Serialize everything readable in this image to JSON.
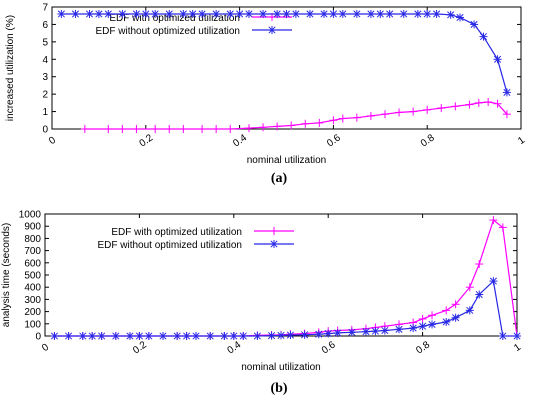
{
  "captions": [
    "(a)",
    "(b)"
  ],
  "colors": {
    "with": "#ff00ff",
    "without": "#2828e6",
    "axis": "#000000"
  },
  "chart_data": [
    {
      "type": "line",
      "xlabel": "nominal utilization",
      "ylabel": "increased utilization (%)",
      "xlim": [
        0,
        1
      ],
      "ylim": [
        0,
        7
      ],
      "xticks": [
        "0",
        "0.2",
        "0.4",
        "0.6",
        "0.8",
        "1"
      ],
      "yticks": [
        "0",
        "1",
        "2",
        "3",
        "4",
        "5",
        "6",
        "7"
      ],
      "legend_position": "top-right",
      "grid": false,
      "series": [
        {
          "name": "EDF with optimized utilization",
          "marker": "plus",
          "x": [
            0.07,
            0.12,
            0.15,
            0.18,
            0.22,
            0.25,
            0.28,
            0.32,
            0.35,
            0.38,
            0.42,
            0.45,
            0.48,
            0.51,
            0.54,
            0.57,
            0.6,
            0.62,
            0.65,
            0.68,
            0.71,
            0.74,
            0.77,
            0.8,
            0.83,
            0.86,
            0.89,
            0.91,
            0.93,
            0.95,
            0.97
          ],
          "y": [
            0,
            0,
            0,
            0,
            0,
            0,
            0,
            0,
            0,
            0,
            0.05,
            0.1,
            0.15,
            0.2,
            0.3,
            0.35,
            0.5,
            0.6,
            0.65,
            0.75,
            0.85,
            0.95,
            1.0,
            1.1,
            1.2,
            1.3,
            1.4,
            1.5,
            1.55,
            1.45,
            0.85
          ]
        },
        {
          "name": "EDF without optimized utilization",
          "marker": "star",
          "x": [
            0.02,
            0.05,
            0.08,
            0.1,
            0.12,
            0.15,
            0.18,
            0.2,
            0.22,
            0.25,
            0.28,
            0.3,
            0.32,
            0.35,
            0.38,
            0.4,
            0.42,
            0.45,
            0.48,
            0.5,
            0.52,
            0.55,
            0.58,
            0.6,
            0.62,
            0.65,
            0.68,
            0.7,
            0.72,
            0.75,
            0.78,
            0.8,
            0.82,
            0.85,
            0.87,
            0.9,
            0.92,
            0.95,
            0.97
          ],
          "y": [
            6.6,
            6.6,
            6.6,
            6.6,
            6.6,
            6.6,
            6.6,
            6.6,
            6.6,
            6.6,
            6.6,
            6.6,
            6.6,
            6.6,
            6.6,
            6.6,
            6.6,
            6.6,
            6.6,
            6.6,
            6.6,
            6.6,
            6.6,
            6.6,
            6.6,
            6.6,
            6.6,
            6.6,
            6.6,
            6.6,
            6.6,
            6.6,
            6.6,
            6.55,
            6.4,
            6.0,
            5.3,
            4.0,
            2.1
          ]
        }
      ]
    },
    {
      "type": "line",
      "xlabel": "nominal utilization",
      "ylabel": "analysis time (seconds)",
      "xlim": [
        0,
        1
      ],
      "ylim": [
        0,
        1000
      ],
      "xticks": [
        "0",
        "0.2",
        "0.4",
        "0.6",
        "0.8",
        "1"
      ],
      "yticks": [
        "0",
        "100",
        "200",
        "300",
        "400",
        "500",
        "600",
        "700",
        "800",
        "900",
        "1000"
      ],
      "legend_position": "top-right",
      "grid": false,
      "series": [
        {
          "name": "EDF with optimized utilization",
          "marker": "plus",
          "x": [
            0.02,
            0.05,
            0.08,
            0.1,
            0.12,
            0.15,
            0.18,
            0.2,
            0.22,
            0.25,
            0.28,
            0.3,
            0.32,
            0.35,
            0.38,
            0.4,
            0.42,
            0.45,
            0.48,
            0.5,
            0.52,
            0.55,
            0.58,
            0.6,
            0.62,
            0.65,
            0.68,
            0.7,
            0.72,
            0.75,
            0.78,
            0.8,
            0.82,
            0.85,
            0.87,
            0.9,
            0.92,
            0.95,
            0.97,
            1.0
          ],
          "y": [
            0,
            0,
            0,
            0,
            0,
            0,
            0,
            0,
            0,
            0,
            0,
            0,
            0,
            0,
            0,
            0,
            0,
            5,
            8,
            10,
            15,
            20,
            30,
            40,
            45,
            50,
            60,
            70,
            80,
            95,
            110,
            140,
            170,
            210,
            260,
            400,
            590,
            950,
            890,
            0
          ]
        },
        {
          "name": "EDF without optimized utilization",
          "marker": "star",
          "x": [
            0.02,
            0.05,
            0.08,
            0.1,
            0.12,
            0.15,
            0.18,
            0.2,
            0.22,
            0.25,
            0.28,
            0.3,
            0.32,
            0.35,
            0.38,
            0.4,
            0.42,
            0.45,
            0.48,
            0.5,
            0.52,
            0.55,
            0.58,
            0.6,
            0.62,
            0.65,
            0.68,
            0.7,
            0.72,
            0.75,
            0.78,
            0.8,
            0.82,
            0.85,
            0.87,
            0.9,
            0.92,
            0.95,
            0.97,
            1.0
          ],
          "y": [
            0,
            0,
            0,
            0,
            0,
            0,
            0,
            0,
            0,
            0,
            0,
            0,
            0,
            0,
            0,
            0,
            0,
            0,
            3,
            5,
            8,
            10,
            15,
            20,
            25,
            30,
            35,
            40,
            45,
            55,
            65,
            80,
            95,
            115,
            150,
            210,
            340,
            450,
            0,
            0
          ]
        }
      ]
    }
  ]
}
